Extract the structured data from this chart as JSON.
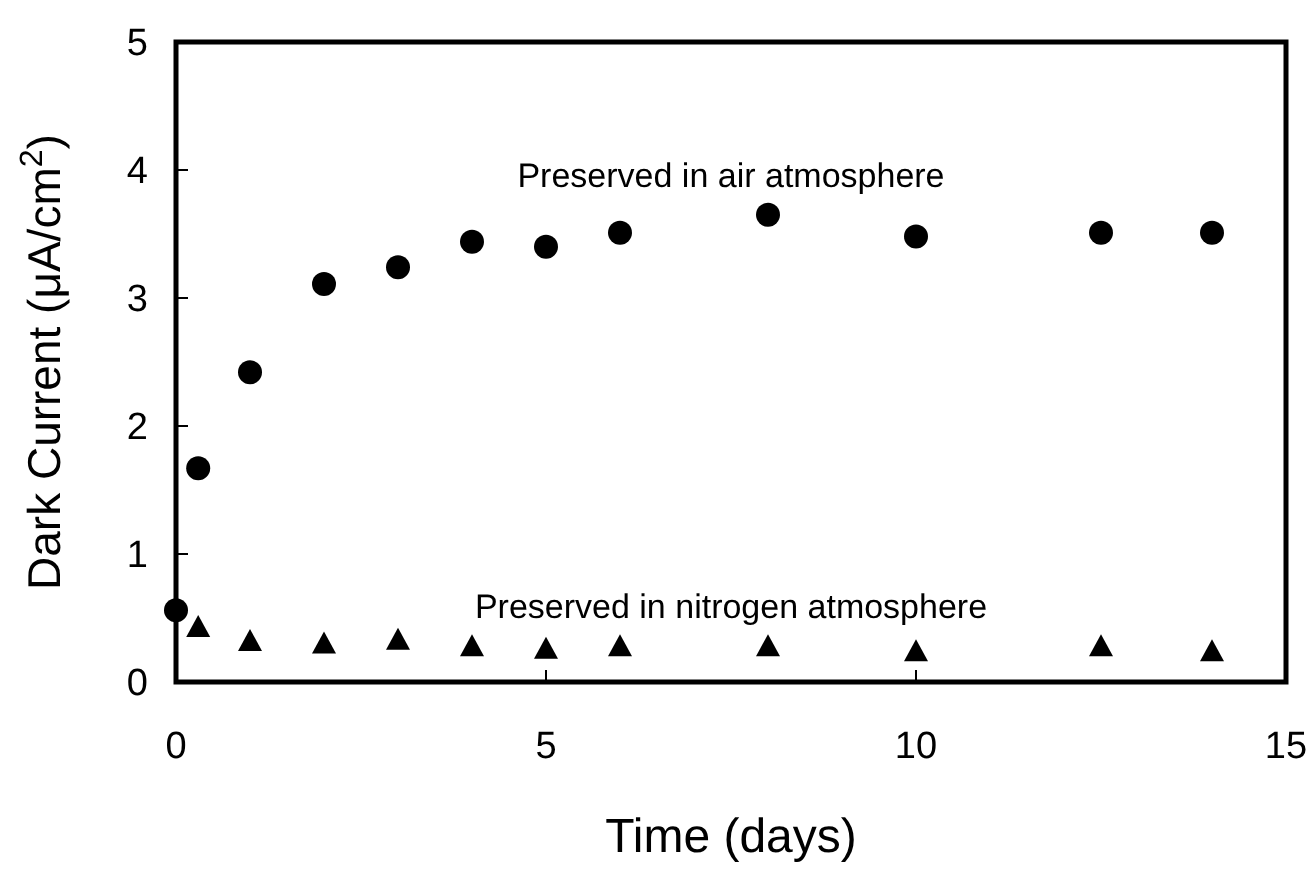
{
  "chart_data": {
    "type": "scatter",
    "xlabel": "Time (days)",
    "ylabel": "Dark Current (μA/cm$^{2}$)",
    "xlim": [
      0,
      15
    ],
    "ylim": [
      0,
      5
    ],
    "xticks": [
      0,
      5,
      10,
      15
    ],
    "yticks": [
      0,
      1,
      2,
      3,
      4,
      5
    ],
    "grid": false,
    "series": [
      {
        "name": "Preserved in air atmosphere",
        "color": "#000000",
        "marker": "circle",
        "x": [
          0,
          0.3,
          1,
          2,
          3,
          4,
          5,
          6,
          8,
          10,
          12.5,
          14
        ],
        "values": [
          0.56,
          1.67,
          2.42,
          3.11,
          3.24,
          3.44,
          3.4,
          3.51,
          3.65,
          3.48,
          3.51,
          3.51
        ]
      },
      {
        "name": "Preserved in nitrogen atmosphere",
        "color": "#000000",
        "marker": "triangle",
        "x": [
          0.3,
          1,
          2,
          3,
          4,
          5,
          6,
          8,
          10,
          12.5,
          14
        ],
        "values": [
          0.43,
          0.32,
          0.3,
          0.33,
          0.28,
          0.26,
          0.28,
          0.28,
          0.24,
          0.28,
          0.24
        ]
      }
    ]
  }
}
